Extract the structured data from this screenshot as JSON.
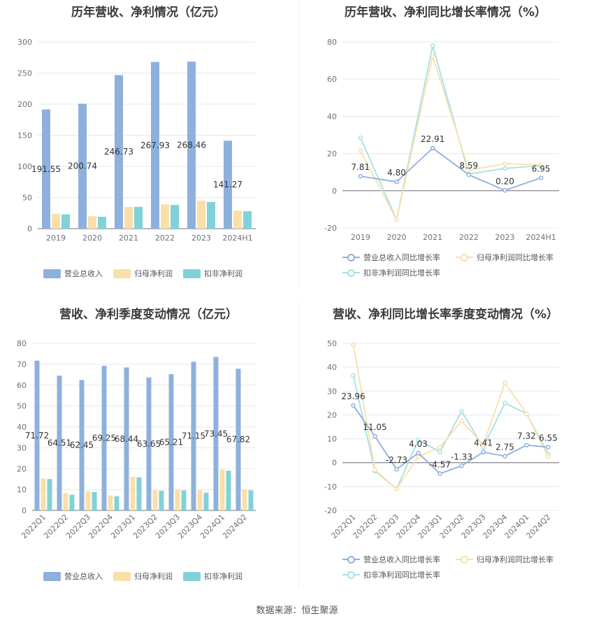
{
  "source": "数据来源：恒生聚源",
  "colors": {
    "revenue": "#8eb0dc",
    "parent_profit": "#fbdfa8",
    "deducted_profit": "#7fd3d8",
    "grid": "#e6e8ee",
    "axis": "#6e7079"
  },
  "charts": {
    "annual_amount": {
      "title": "历年营收、净利情况（亿元）",
      "legend": [
        "营业总收入",
        "归母净利润",
        "扣非净利润"
      ]
    },
    "annual_growth": {
      "title": "历年营收、净利同比增长率情况（%）",
      "legend": [
        "营业总收入同比增长率",
        "归母净利润同比增长率",
        "扣非净利润同比增长率"
      ]
    },
    "quarter_amount": {
      "title": "营收、净利季度变动情况（亿元）",
      "legend": [
        "营业总收入",
        "归母净利润",
        "扣非净利润"
      ]
    },
    "quarter_growth": {
      "title": "营收、净利同比增长率季度变动情况（%）",
      "legend": [
        "营业总收入同比增长率",
        "归母净利润同比增长率",
        "扣非净利润同比增长率"
      ]
    }
  },
  "chart_data": [
    {
      "type": "bar",
      "title": "历年营收、净利情况（亿元）",
      "categories": [
        "2019",
        "2020",
        "2021",
        "2022",
        "2023",
        "2024H1"
      ],
      "ylim": [
        0,
        300
      ],
      "yticks": [
        0,
        50,
        100,
        150,
        200,
        250,
        300
      ],
      "series": [
        {
          "name": "营业总收入",
          "values": [
            191.55,
            200.74,
            246.73,
            267.93,
            268.46,
            141.27
          ],
          "labels": [
            "191.55",
            "200.74",
            "246.73",
            "267.93",
            "268.46",
            "141.27"
          ]
        },
        {
          "name": "归母净利润",
          "values": [
            24,
            20,
            35,
            39,
            45,
            29
          ]
        },
        {
          "name": "扣非净利润",
          "values": [
            23,
            19,
            35,
            38,
            43,
            28
          ]
        }
      ]
    },
    {
      "type": "line",
      "title": "历年营收、净利同比增长率情况（%）",
      "categories": [
        "2019",
        "2020",
        "2021",
        "2022",
        "2023",
        "2024H1"
      ],
      "ylim": [
        -20,
        80
      ],
      "yticks": [
        -20,
        0,
        20,
        40,
        60,
        80
      ],
      "series": [
        {
          "name": "营业总收入同比增长率",
          "values": [
            7.81,
            4.8,
            22.91,
            8.59,
            0.2,
            6.95
          ],
          "labels": [
            "7.81",
            "4.80",
            "22.91",
            "8.59",
            "0.20",
            "6.95"
          ]
        },
        {
          "name": "归母净利润同比增长率",
          "values": [
            21.5,
            -15.5,
            72.5,
            11,
            14.5,
            14
          ]
        },
        {
          "name": "扣非净利润同比增长率",
          "values": [
            28.5,
            -15.5,
            78,
            9,
            12,
            13.5
          ]
        }
      ]
    },
    {
      "type": "bar",
      "title": "营收、净利季度变动情况（亿元）",
      "categories": [
        "2022Q1",
        "2022Q2",
        "2022Q3",
        "2022Q4",
        "2023Q1",
        "2023Q2",
        "2023Q3",
        "2023Q4",
        "2024Q1",
        "2024Q2"
      ],
      "ylim": [
        0,
        80
      ],
      "yticks": [
        0,
        10,
        20,
        30,
        40,
        50,
        60,
        70,
        80
      ],
      "series": [
        {
          "name": "营业总收入",
          "values": [
            71.72,
            64.51,
            62.45,
            69.25,
            68.44,
            63.65,
            65.21,
            71.15,
            73.45,
            67.82
          ],
          "labels": [
            "71.72",
            "64.51",
            "62.45",
            "69.25",
            "68.44",
            "63.65",
            "65.21",
            "71.15",
            "73.45",
            "67.82"
          ]
        },
        {
          "name": "归母净利润",
          "values": [
            15.2,
            8.2,
            9.2,
            7.2,
            16.2,
            9.7,
            10.1,
            9.7,
            19.6,
            10
          ]
        },
        {
          "name": "扣非净利润",
          "values": [
            15,
            7.5,
            8.8,
            6.8,
            15.8,
            9.4,
            9.6,
            8.5,
            19,
            9.6
          ]
        }
      ]
    },
    {
      "type": "line",
      "title": "营收、净利同比增长率季度变动情况（%）",
      "categories": [
        "2022Q1",
        "2022Q2",
        "2022Q3",
        "2022Q4",
        "2023Q1",
        "2023Q2",
        "2023Q3",
        "2023Q4",
        "2024Q1",
        "2024Q2"
      ],
      "ylim": [
        -20,
        50
      ],
      "yticks": [
        -20,
        -10,
        0,
        10,
        20,
        30,
        40,
        50
      ],
      "series": [
        {
          "name": "营业总收入同比增长率",
          "values": [
            23.96,
            11.05,
            -2.73,
            4.03,
            -4.57,
            -1.33,
            4.41,
            2.75,
            7.32,
            6.55
          ],
          "labels": [
            "23.96",
            "11.05",
            "-2.73",
            "4.03",
            "-4.57",
            "-1.33",
            "4.41",
            "2.75",
            "7.32",
            "6.55"
          ]
        },
        {
          "name": "归母净利润同比增长率",
          "values": [
            49.5,
            -3,
            -11,
            2.5,
            6.5,
            17.5,
            7.5,
            33.5,
            20.5,
            2.5
          ]
        },
        {
          "name": "扣非净利润同比增长率",
          "values": [
            36.5,
            -3.5,
            -11,
            9.5,
            4.5,
            21.5,
            6.5,
            25,
            20.5,
            3.5
          ]
        }
      ]
    }
  ]
}
